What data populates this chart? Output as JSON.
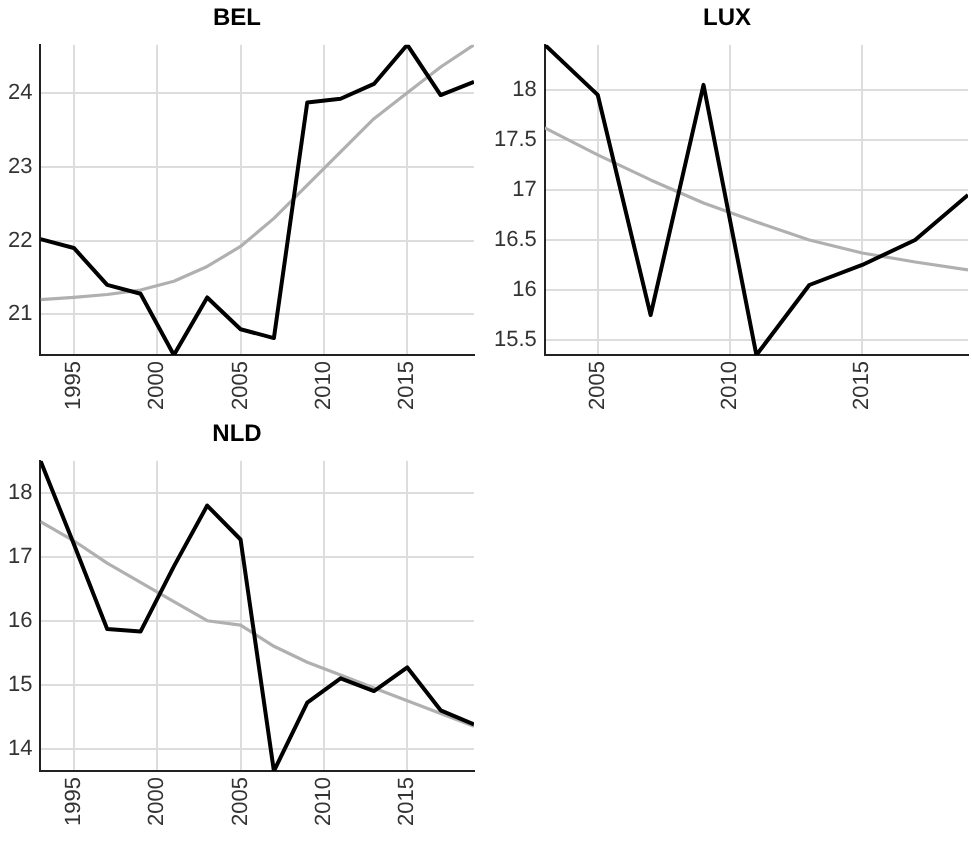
{
  "chart_data": [
    {
      "type": "line",
      "title": "BEL",
      "x": [
        1993,
        1995,
        1997,
        1999,
        2001,
        2003,
        2005,
        2007,
        2009,
        2011,
        2013,
        2015,
        2017,
        2019
      ],
      "xlim": [
        1993,
        2019
      ],
      "ylim": [
        20.45,
        24.65
      ],
      "xticks": [
        1995,
        2000,
        2005,
        2010,
        2015
      ],
      "yticks": [
        21,
        22,
        23,
        24
      ],
      "grid": true,
      "legend": false,
      "marker": "none",
      "line_style": "solid",
      "series": [
        {
          "color": "#000000",
          "values": [
            22.02,
            21.9,
            21.4,
            21.28,
            20.45,
            21.23,
            20.8,
            20.68,
            23.87,
            23.92,
            24.12,
            24.65,
            23.97,
            24.15
          ]
        },
        {
          "color": "#b0b0b0",
          "values": [
            21.2,
            21.23,
            21.27,
            21.33,
            21.45,
            21.65,
            21.92,
            22.3,
            22.75,
            23.2,
            23.65,
            24.0,
            24.35,
            24.65
          ]
        }
      ]
    },
    {
      "type": "line",
      "title": "LUX",
      "x": [
        2003,
        2005,
        2007,
        2009,
        2011,
        2013,
        2015,
        2017,
        2019
      ],
      "xlim": [
        2003,
        2019
      ],
      "ylim": [
        15.35,
        18.45
      ],
      "xticks": [
        2005,
        2010,
        2015
      ],
      "yticks": [
        15.5,
        16,
        16.5,
        17,
        17.5,
        18
      ],
      "grid": true,
      "legend": false,
      "marker": "none",
      "line_style": "solid",
      "series": [
        {
          "color": "#000000",
          "values": [
            18.45,
            17.95,
            15.75,
            18.05,
            15.35,
            16.05,
            16.25,
            16.5,
            16.95
          ]
        },
        {
          "color": "#b0b0b0",
          "values": [
            17.62,
            17.35,
            17.1,
            16.87,
            16.68,
            16.5,
            16.37,
            16.28,
            16.2
          ]
        }
      ]
    },
    {
      "type": "line",
      "title": "NLD",
      "x": [
        1993,
        1995,
        1997,
        1999,
        2001,
        2003,
        2005,
        2007,
        2009,
        2011,
        2013,
        2015,
        2017,
        2019
      ],
      "xlim": [
        1993,
        2019
      ],
      "ylim": [
        13.65,
        18.5
      ],
      "xticks": [
        1995,
        2000,
        2005,
        2010,
        2015
      ],
      "yticks": [
        14,
        15,
        16,
        17,
        18
      ],
      "grid": true,
      "legend": false,
      "marker": "none",
      "line_style": "solid",
      "series": [
        {
          "color": "#000000",
          "values": [
            18.5,
            17.2,
            15.87,
            15.83,
            16.85,
            17.8,
            17.27,
            13.65,
            14.72,
            15.1,
            14.9,
            15.27,
            14.6,
            14.38
          ]
        },
        {
          "color": "#b0b0b0",
          "values": [
            17.55,
            17.25,
            16.9,
            16.6,
            16.3,
            16.0,
            15.93,
            15.6,
            15.35,
            15.15,
            14.95,
            14.75,
            14.55,
            14.35
          ]
        }
      ]
    }
  ]
}
